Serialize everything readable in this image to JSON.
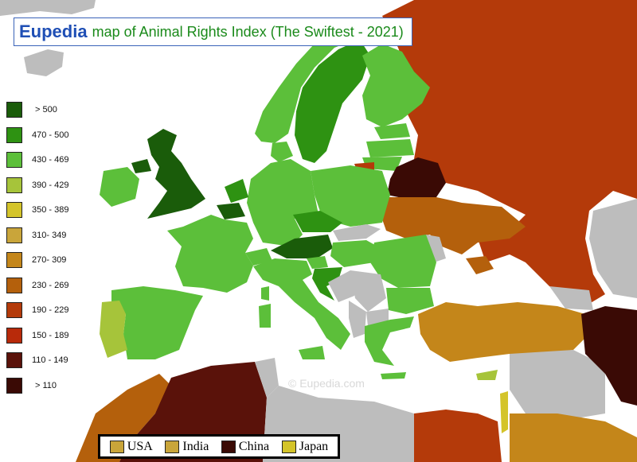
{
  "title": {
    "brand": "Eupedia",
    "text": "map of Animal Rights Index (The Swiftest - 2021)"
  },
  "legend": [
    {
      "label": "> 500",
      "color": "#1a5c0a"
    },
    {
      "label": "470 - 500",
      "color": "#2e9212"
    },
    {
      "label": "430 - 469",
      "color": "#5cbf3a"
    },
    {
      "label": "390 - 429",
      "color": "#a6c43a"
    },
    {
      "label": "350 - 389",
      "color": "#d4c42a"
    },
    {
      "label": "310- 349",
      "color": "#c9a53a"
    },
    {
      "label": "270- 309",
      "color": "#c4861a"
    },
    {
      "label": "230 - 269",
      "color": "#b4600c"
    },
    {
      "label": "190 - 229",
      "color": "#b43a0a"
    },
    {
      "label": "150 - 189",
      "color": "#b82a0a"
    },
    {
      "label": "110 - 149",
      "color": "#5a120a"
    },
    {
      "label": "> 110",
      "color": "#3a0a05"
    }
  ],
  "watermark": "©  Eupedia.com",
  "references": [
    {
      "label": "USA",
      "color": "#c9a53a"
    },
    {
      "label": "India",
      "color": "#c9a53a"
    },
    {
      "label": "China",
      "color": "#3a0a05"
    },
    {
      "label": "Japan",
      "color": "#d4c42a"
    }
  ],
  "colors": {
    "no_data": "#bdbdbd",
    "sea": "#ffffff",
    "border": "#ffffff"
  }
}
